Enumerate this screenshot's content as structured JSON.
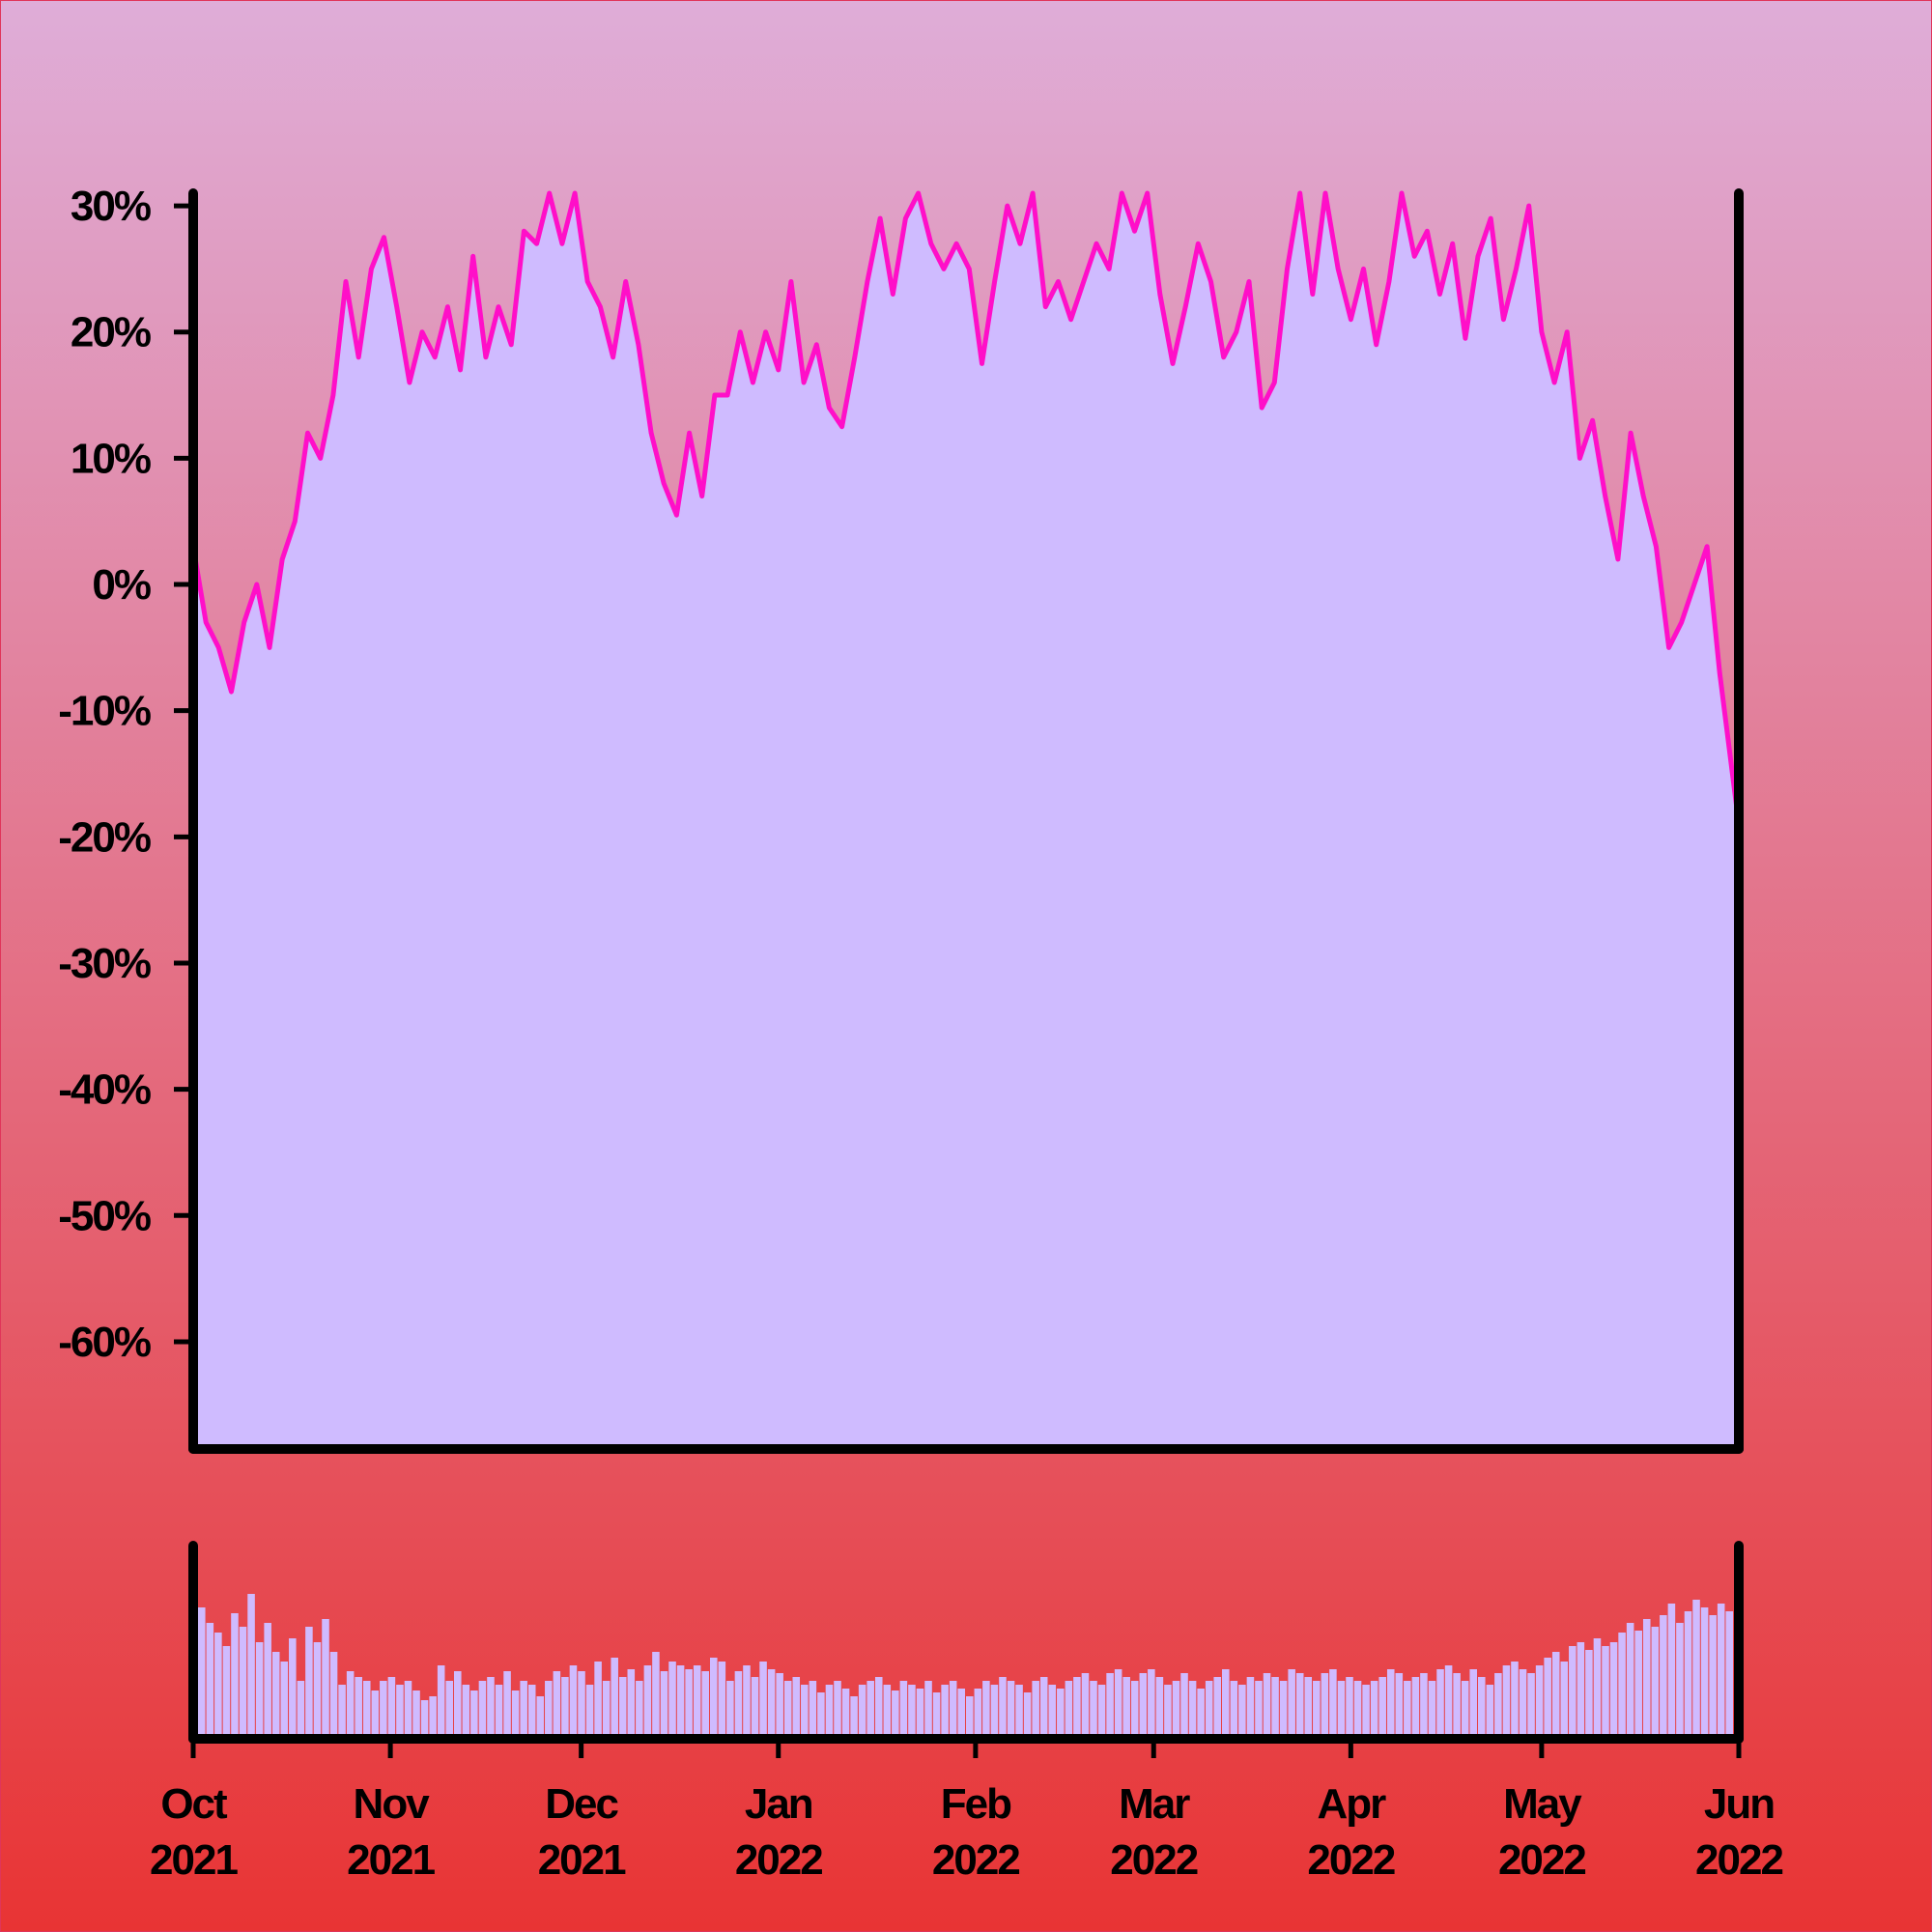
{
  "colors": {
    "background_top": "#dfadd8",
    "background_bottom": "#e83434",
    "border": "#e0355a",
    "area_fill": "#cfbbff",
    "line": "#ff0fc8",
    "axis": "#000000"
  },
  "chart_data": [
    {
      "type": "area",
      "panel": "price",
      "title": "",
      "xlabel": "",
      "ylabel": "",
      "y_unit": "%",
      "x_range": [
        "2021-10-01",
        "2022-06-01"
      ],
      "ylim": [
        -68.5,
        31
      ],
      "y_ticks": [
        {
          "value": 30,
          "label": "30%"
        },
        {
          "value": 20,
          "label": "20%"
        },
        {
          "value": 10,
          "label": "10%"
        },
        {
          "value": 0,
          "label": "0%"
        },
        {
          "value": -10,
          "label": "-10%"
        },
        {
          "value": -20,
          "label": "-20%"
        },
        {
          "value": -30,
          "label": "-30%"
        },
        {
          "value": -40,
          "label": "-40%"
        },
        {
          "value": -50,
          "label": "-50%"
        },
        {
          "value": -60,
          "label": "-60%"
        }
      ],
      "grid": false,
      "legend": "none",
      "series": [
        {
          "points": [
            [
              "2021-10-01",
              3
            ],
            [
              "2021-10-03",
              -3
            ],
            [
              "2021-10-05",
              -5
            ],
            [
              "2021-10-07",
              -8.5
            ],
            [
              "2021-10-09",
              -3
            ],
            [
              "2021-10-11",
              0
            ],
            [
              "2021-10-13",
              -5
            ],
            [
              "2021-10-15",
              2
            ],
            [
              "2021-10-17",
              5
            ],
            [
              "2021-10-19",
              12
            ],
            [
              "2021-10-21",
              10
            ],
            [
              "2021-10-23",
              15
            ],
            [
              "2021-10-25",
              24
            ],
            [
              "2021-10-27",
              18
            ],
            [
              "2021-10-29",
              25
            ],
            [
              "2021-10-31",
              27.5
            ],
            [
              "2021-11-02",
              22
            ],
            [
              "2021-11-04",
              16
            ],
            [
              "2021-11-06",
              20
            ],
            [
              "2021-11-08",
              18
            ],
            [
              "2021-11-10",
              22
            ],
            [
              "2021-11-12",
              17
            ],
            [
              "2021-11-14",
              26
            ],
            [
              "2021-11-16",
              18
            ],
            [
              "2021-11-18",
              22
            ],
            [
              "2021-11-20",
              19
            ],
            [
              "2021-11-22",
              28
            ],
            [
              "2021-11-24",
              27
            ],
            [
              "2021-11-26",
              31
            ],
            [
              "2021-11-28",
              27
            ],
            [
              "2021-11-30",
              31
            ],
            [
              "2021-12-02",
              24
            ],
            [
              "2021-12-04",
              22
            ],
            [
              "2021-12-06",
              18
            ],
            [
              "2021-12-08",
              24
            ],
            [
              "2021-12-10",
              19
            ],
            [
              "2021-12-12",
              12
            ],
            [
              "2021-12-14",
              8
            ],
            [
              "2021-12-16",
              5.5
            ],
            [
              "2021-12-18",
              12
            ],
            [
              "2021-12-20",
              7
            ],
            [
              "2021-12-22",
              15
            ],
            [
              "2021-12-24",
              15
            ],
            [
              "2021-12-26",
              20
            ],
            [
              "2021-12-28",
              16
            ],
            [
              "2021-12-30",
              20
            ],
            [
              "2022-01-01",
              17
            ],
            [
              "2022-01-03",
              24
            ],
            [
              "2022-01-05",
              16
            ],
            [
              "2022-01-07",
              19
            ],
            [
              "2022-01-09",
              14
            ],
            [
              "2022-01-11",
              12.5
            ],
            [
              "2022-01-13",
              18
            ],
            [
              "2022-01-15",
              24
            ],
            [
              "2022-01-17",
              29
            ],
            [
              "2022-01-19",
              23
            ],
            [
              "2022-01-21",
              29
            ],
            [
              "2022-01-23",
              31
            ],
            [
              "2022-01-25",
              27
            ],
            [
              "2022-01-27",
              25
            ],
            [
              "2022-01-29",
              27
            ],
            [
              "2022-01-31",
              25
            ],
            [
              "2022-02-02",
              17.5
            ],
            [
              "2022-02-04",
              24
            ],
            [
              "2022-02-06",
              30
            ],
            [
              "2022-02-08",
              27
            ],
            [
              "2022-02-10",
              31
            ],
            [
              "2022-02-12",
              22
            ],
            [
              "2022-02-14",
              24
            ],
            [
              "2022-02-16",
              21
            ],
            [
              "2022-02-18",
              24
            ],
            [
              "2022-02-20",
              27
            ],
            [
              "2022-02-22",
              25
            ],
            [
              "2022-02-24",
              31
            ],
            [
              "2022-02-26",
              28
            ],
            [
              "2022-02-28",
              31
            ],
            [
              "2022-03-02",
              23
            ],
            [
              "2022-03-04",
              17.5
            ],
            [
              "2022-03-06",
              22
            ],
            [
              "2022-03-08",
              27
            ],
            [
              "2022-03-10",
              24
            ],
            [
              "2022-03-12",
              18
            ],
            [
              "2022-03-14",
              20
            ],
            [
              "2022-03-16",
              24
            ],
            [
              "2022-03-18",
              14
            ],
            [
              "2022-03-20",
              16
            ],
            [
              "2022-03-22",
              25
            ],
            [
              "2022-03-24",
              31
            ],
            [
              "2022-03-26",
              23
            ],
            [
              "2022-03-28",
              31
            ],
            [
              "2022-03-30",
              25
            ],
            [
              "2022-04-01",
              21
            ],
            [
              "2022-04-03",
              25
            ],
            [
              "2022-04-05",
              19
            ],
            [
              "2022-04-07",
              24
            ],
            [
              "2022-04-09",
              31
            ],
            [
              "2022-04-11",
              26
            ],
            [
              "2022-04-13",
              28
            ],
            [
              "2022-04-15",
              23
            ],
            [
              "2022-04-17",
              27
            ],
            [
              "2022-04-19",
              19.5
            ],
            [
              "2022-04-21",
              26
            ],
            [
              "2022-04-23",
              29
            ],
            [
              "2022-04-25",
              21
            ],
            [
              "2022-04-27",
              25
            ],
            [
              "2022-04-29",
              30
            ],
            [
              "2022-05-01",
              20
            ],
            [
              "2022-05-03",
              16
            ],
            [
              "2022-05-05",
              20
            ],
            [
              "2022-05-07",
              10
            ],
            [
              "2022-05-09",
              13
            ],
            [
              "2022-05-11",
              7
            ],
            [
              "2022-05-13",
              2
            ],
            [
              "2022-05-15",
              12
            ],
            [
              "2022-05-17",
              7
            ],
            [
              "2022-05-19",
              3
            ],
            [
              "2022-05-21",
              -5
            ],
            [
              "2022-05-23",
              -3
            ],
            [
              "2022-05-25",
              0
            ],
            [
              "2022-05-27",
              3
            ],
            [
              "2022-05-29",
              -7
            ],
            [
              "2022-05-31",
              -15
            ],
            [
              "2022-06-01",
              -19
            ]
          ]
        }
      ]
    },
    {
      "type": "bar",
      "panel": "volume",
      "title": "",
      "y_unit": "",
      "x_range": [
        "2021-10-01",
        "2022-06-01"
      ],
      "ylim": [
        0,
        1
      ],
      "x_ticks": [
        {
          "date": "2021-10-01",
          "label": [
            "Oct",
            "2021"
          ]
        },
        {
          "date": "2021-11-01",
          "label": [
            "Nov",
            "2021"
          ]
        },
        {
          "date": "2021-12-01",
          "label": [
            "Dec",
            "2021"
          ]
        },
        {
          "date": "2022-01-01",
          "label": [
            "Jan",
            "2022"
          ]
        },
        {
          "date": "2022-02-01",
          "label": [
            "Feb",
            "2022"
          ]
        },
        {
          "date": "2022-03-01",
          "label": [
            "Mar",
            "2022"
          ]
        },
        {
          "date": "2022-04-01",
          "label": [
            "Apr",
            "2022"
          ]
        },
        {
          "date": "2022-05-01",
          "label": [
            "May",
            "2022"
          ]
        },
        {
          "date": "2022-06-01",
          "label": [
            "Jun",
            "2022"
          ]
        }
      ],
      "grid": false,
      "legend": "none",
      "series": [
        {
          "values": [
            0.68,
            0.6,
            0.55,
            0.48,
            0.65,
            0.58,
            0.75,
            0.5,
            0.6,
            0.45,
            0.4,
            0.52,
            0.3,
            0.58,
            0.5,
            0.62,
            0.45,
            0.28,
            0.35,
            0.32,
            0.3,
            0.25,
            0.3,
            0.32,
            0.28,
            0.3,
            0.25,
            0.2,
            0.22,
            0.38,
            0.3,
            0.35,
            0.28,
            0.25,
            0.3,
            0.32,
            0.28,
            0.35,
            0.25,
            0.3,
            0.28,
            0.22,
            0.3,
            0.35,
            0.32,
            0.38,
            0.35,
            0.28,
            0.4,
            0.3,
            0.42,
            0.32,
            0.36,
            0.3,
            0.38,
            0.45,
            0.35,
            0.4,
            0.38,
            0.36,
            0.38,
            0.35,
            0.42,
            0.4,
            0.3,
            0.35,
            0.38,
            0.32,
            0.4,
            0.36,
            0.34,
            0.3,
            0.32,
            0.28,
            0.3,
            0.24,
            0.28,
            0.3,
            0.26,
            0.22,
            0.28,
            0.3,
            0.32,
            0.28,
            0.25,
            0.3,
            0.28,
            0.26,
            0.3,
            0.24,
            0.28,
            0.3,
            0.26,
            0.22,
            0.26,
            0.3,
            0.28,
            0.32,
            0.3,
            0.28,
            0.24,
            0.3,
            0.32,
            0.28,
            0.26,
            0.3,
            0.32,
            0.34,
            0.3,
            0.28,
            0.34,
            0.36,
            0.32,
            0.3,
            0.34,
            0.36,
            0.32,
            0.28,
            0.3,
            0.34,
            0.3,
            0.26,
            0.3,
            0.32,
            0.36,
            0.3,
            0.28,
            0.32,
            0.3,
            0.34,
            0.32,
            0.3,
            0.36,
            0.34,
            0.32,
            0.3,
            0.34,
            0.36,
            0.3,
            0.32,
            0.3,
            0.28,
            0.3,
            0.32,
            0.36,
            0.34,
            0.3,
            0.32,
            0.34,
            0.3,
            0.36,
            0.38,
            0.34,
            0.3,
            0.36,
            0.32,
            0.28,
            0.34,
            0.38,
            0.4,
            0.36,
            0.34,
            0.38,
            0.42,
            0.45,
            0.4,
            0.48,
            0.5,
            0.46,
            0.52,
            0.48,
            0.5,
            0.55,
            0.6,
            0.56,
            0.62,
            0.58,
            0.64,
            0.7,
            0.6,
            0.66,
            0.72,
            0.68,
            0.64,
            0.7,
            0.66
          ]
        }
      ]
    }
  ]
}
